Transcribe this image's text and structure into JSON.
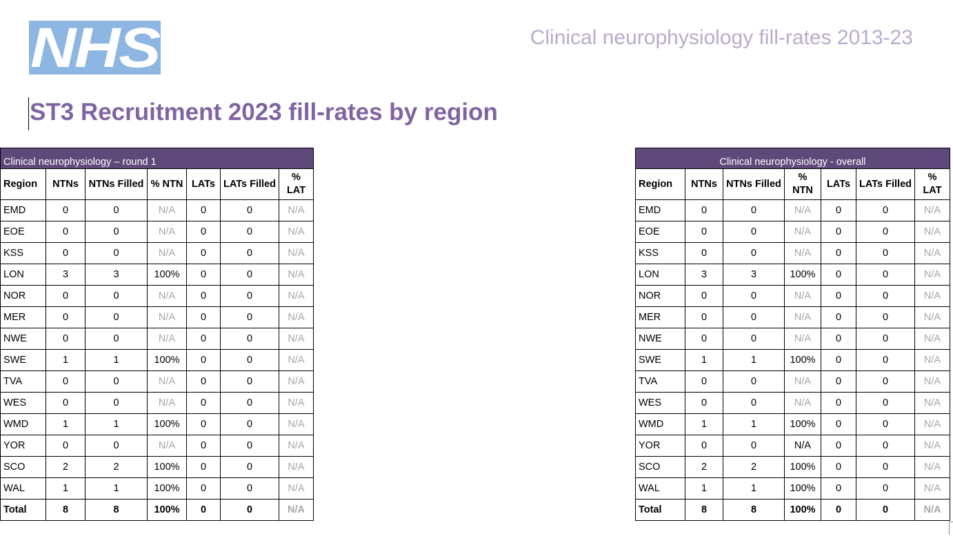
{
  "logo_text": "NHS",
  "header_title": "Clinical neurophysiology fill-rates 2013-23",
  "page_title": "ST3 Recruitment 2023 fill-rates by region",
  "columns": [
    "Region",
    "NTNs",
    "NTNs Filled",
    "% NTN",
    "LATs",
    "LATs Filled",
    "% LAT"
  ],
  "colors": {
    "caption_bg": "#5f497a",
    "title": "#8064a2",
    "header": "#b9abcf",
    "logo_bg": "#8db6e2",
    "na": "#a6a6a6"
  },
  "tables": [
    {
      "caption": "Clinical neurophysiology – round 1",
      "caption_align": "left",
      "rows": [
        [
          "EMD",
          "0",
          "0",
          "N/A",
          "0",
          "0",
          "N/A"
        ],
        [
          "EOE",
          "0",
          "0",
          "N/A",
          "0",
          "0",
          "N/A"
        ],
        [
          "KSS",
          "0",
          "0",
          "N/A",
          "0",
          "0",
          "N/A"
        ],
        [
          "LON",
          "3",
          "3",
          "100%",
          "0",
          "0",
          "N/A"
        ],
        [
          "NOR",
          "0",
          "0",
          "N/A",
          "0",
          "0",
          "N/A"
        ],
        [
          "MER",
          "0",
          "0",
          "N/A",
          "0",
          "0",
          "N/A"
        ],
        [
          "NWE",
          "0",
          "0",
          "N/A",
          "0",
          "0",
          "N/A"
        ],
        [
          "SWE",
          "1",
          "1",
          "100%",
          "0",
          "0",
          "N/A"
        ],
        [
          "TVA",
          "0",
          "0",
          "N/A",
          "0",
          "0",
          "N/A"
        ],
        [
          "WES",
          "0",
          "0",
          "N/A",
          "0",
          "0",
          "N/A"
        ],
        [
          "WMD",
          "1",
          "1",
          "100%",
          "0",
          "0",
          "N/A"
        ],
        [
          "YOR",
          "0",
          "0",
          "N/A",
          "0",
          "0",
          "N/A"
        ],
        [
          "SCO",
          "2",
          "2",
          "100%",
          "0",
          "0",
          "N/A"
        ],
        [
          "WAL",
          "1",
          "1",
          "100%",
          "0",
          "0",
          "N/A"
        ]
      ],
      "total": [
        "Total",
        "8",
        "8",
        "100%",
        "0",
        "0",
        "N/A"
      ]
    },
    {
      "caption": "Clinical neurophysiology - overall",
      "caption_align": "center",
      "rows": [
        [
          "EMD",
          "0",
          "0",
          "N/A",
          "0",
          "0",
          "N/A"
        ],
        [
          "EOE",
          "0",
          "0",
          "N/A",
          "0",
          "0",
          "N/A"
        ],
        [
          "KSS",
          "0",
          "0",
          "N/A",
          "0",
          "0",
          "N/A"
        ],
        [
          "LON",
          "3",
          "3",
          "100%",
          "0",
          "0",
          "N/A"
        ],
        [
          "NOR",
          "0",
          "0",
          "N/A",
          "0",
          "0",
          "N/A"
        ],
        [
          "MER",
          "0",
          "0",
          "N/A",
          "0",
          "0",
          "N/A"
        ],
        [
          "NWE",
          "0",
          "0",
          "N/A",
          "0",
          "0",
          "N/A"
        ],
        [
          "SWE",
          "1",
          "1",
          "100%",
          "0",
          "0",
          "N/A"
        ],
        [
          "TVA",
          "0",
          "0",
          "N/A",
          "0",
          "0",
          "N/A"
        ],
        [
          "WES",
          "0",
          "0",
          "N/A",
          "0",
          "0",
          "N/A"
        ],
        [
          "WMD",
          "1",
          "1",
          "100%",
          "0",
          "0",
          "N/A"
        ],
        [
          "YOR",
          "0",
          "0",
          "N/A*",
          "0",
          "0",
          "N/A"
        ],
        [
          "SCO",
          "2",
          "2",
          "100%",
          "0",
          "0",
          "N/A"
        ],
        [
          "WAL",
          "1",
          "1",
          "100%",
          "0",
          "0",
          "N/A"
        ]
      ],
      "total": [
        "Total",
        "8",
        "8",
        "100%",
        "0",
        "0",
        "N/A"
      ]
    }
  ]
}
